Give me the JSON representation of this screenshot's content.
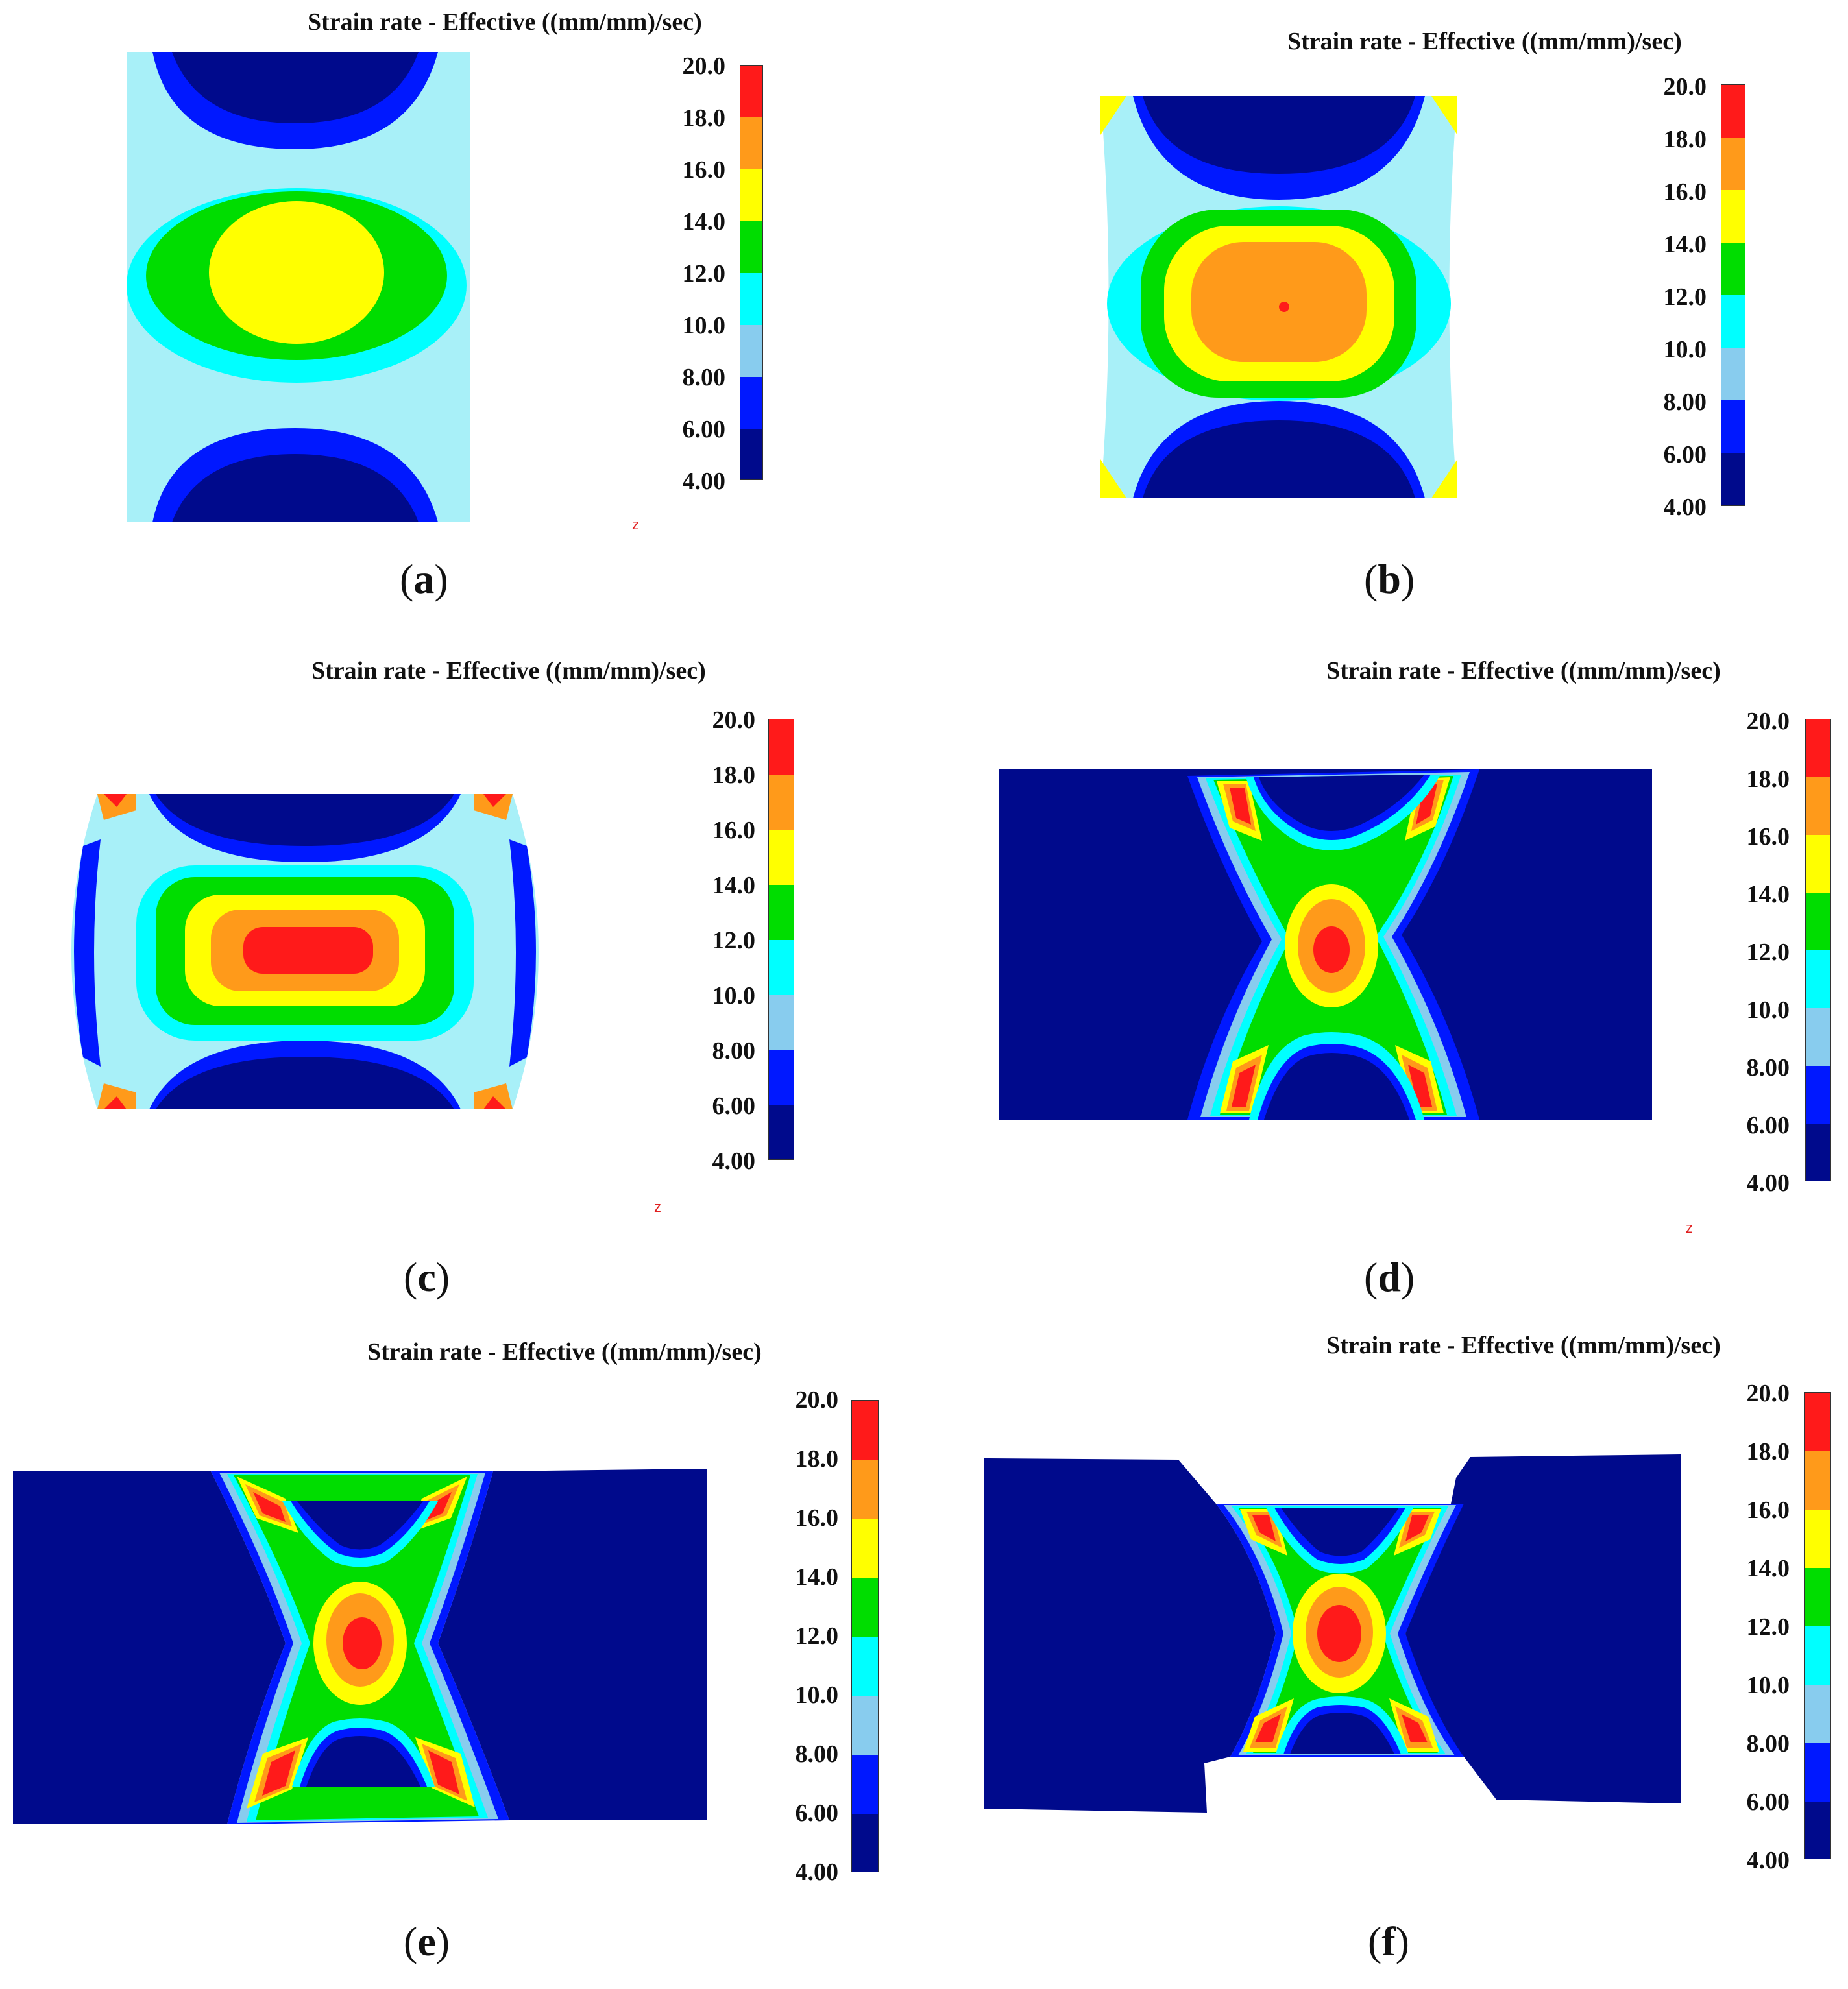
{
  "legend": {
    "title": "Strain rate - Effective ((mm/mm)/sec)",
    "ticks": [
      "20.0",
      "18.0",
      "16.0",
      "14.0",
      "12.0",
      "10.0",
      "8.00",
      "6.00",
      "4.00"
    ],
    "colors": [
      "#ff1a1a",
      "#ff9a1a",
      "#ffff00",
      "#00dd00",
      "#00ffff",
      "#88ccee",
      "#0018ff",
      "#000a8c"
    ]
  },
  "axis_marker": "z",
  "panels": [
    {
      "id": "a",
      "label": "a"
    },
    {
      "id": "b",
      "label": "b"
    },
    {
      "id": "c",
      "label": "c"
    },
    {
      "id": "d",
      "label": "d"
    },
    {
      "id": "e",
      "label": "e"
    },
    {
      "id": "f",
      "label": "f"
    }
  ]
}
